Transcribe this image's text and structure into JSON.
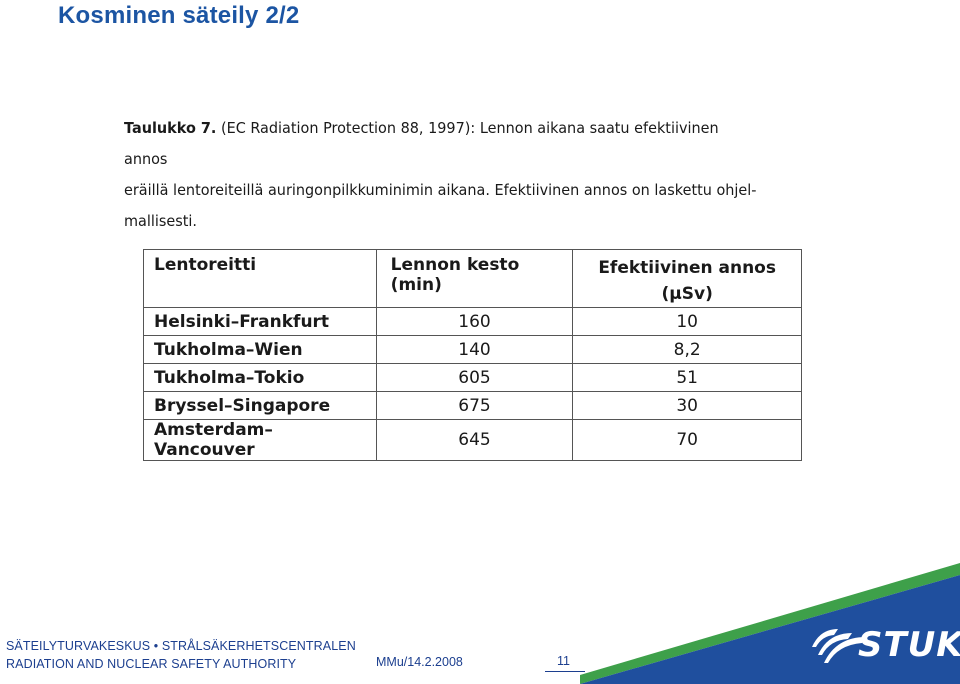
{
  "slide": {
    "title": "Kosminen säteily 2/2"
  },
  "caption": {
    "lead": "Taulukko 7.",
    "line1_rest": " (EC Radiation Protection 88, 1997): Lennon aikana saatu efektiivinen annos",
    "line2": "eräillä lentoreiteillä auringonpilkkuminimin aikana. Efektiivinen annos on laskettu ohjel-",
    "line3": "mallisesti."
  },
  "table": {
    "headers": {
      "route": "Lentoreitti",
      "duration": "Lennon kesto (min)",
      "dose_line1": "Efektiivinen annos",
      "dose_line2": "(μSv)"
    },
    "rows": [
      {
        "route": "Helsinki–Frankfurt",
        "duration": "160",
        "dose": "10"
      },
      {
        "route": "Tukholma–Wien",
        "duration": "140",
        "dose": "8,2"
      },
      {
        "route": "Tukholma–Tokio",
        "duration": "605",
        "dose": "51"
      },
      {
        "route": "Bryssel–Singapore",
        "duration": "675",
        "dose": "30"
      },
      {
        "route": "Amsterdam–Vancouver",
        "duration": "645",
        "dose": "70"
      }
    ]
  },
  "footer": {
    "org_line1": "SÄTEILYTURVAKESKUS • STRÅLSÄKERHETSCENTRALEN",
    "org_line2": "RADIATION AND NUCLEAR SAFETY AUTHORITY",
    "reference": "MMu/14.2.2008",
    "page_number": "11",
    "logo_text": "STUK"
  },
  "colors": {
    "title": "#1c55a3",
    "footer_text": "#1c3f8f",
    "logo_blue": "#1f4f9e",
    "logo_green": "#3ea04a"
  }
}
